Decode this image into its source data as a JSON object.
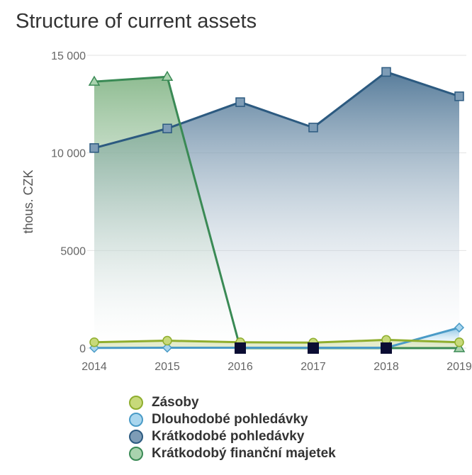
{
  "chart_data": {
    "type": "area",
    "title": "Structure of current assets",
    "ylabel": "thous. CZK",
    "xlabel": "",
    "x": [
      "2014",
      "2015",
      "2016",
      "2017",
      "2018",
      "2019"
    ],
    "ylim": [
      0,
      15000
    ],
    "yticks": [
      0,
      5000,
      10000,
      15000
    ],
    "ytick_labels": [
      "0",
      "5000",
      "10 000",
      "15 000"
    ],
    "grid": true,
    "legend_position": "bottom",
    "series": [
      {
        "name": "Zásoby",
        "values": [
          300,
          380,
          300,
          280,
          420,
          300
        ],
        "color": "#8fae2e",
        "marker": "circle"
      },
      {
        "name": "Dlouhodobé pohledávky",
        "values": [
          10,
          20,
          20,
          20,
          20,
          1050
        ],
        "color": "#4a9bc7",
        "marker": "diamond"
      },
      {
        "name": "Krátkodobé pohledávky",
        "values": [
          10250,
          11250,
          12600,
          11300,
          14150,
          12900
        ],
        "color": "#2c5a80",
        "marker": "square"
      },
      {
        "name": "Krátkodobý finanční majetek",
        "values": [
          13650,
          13900,
          0,
          0,
          0,
          0
        ],
        "color": "#3a8a55",
        "marker": "triangle"
      }
    ]
  }
}
